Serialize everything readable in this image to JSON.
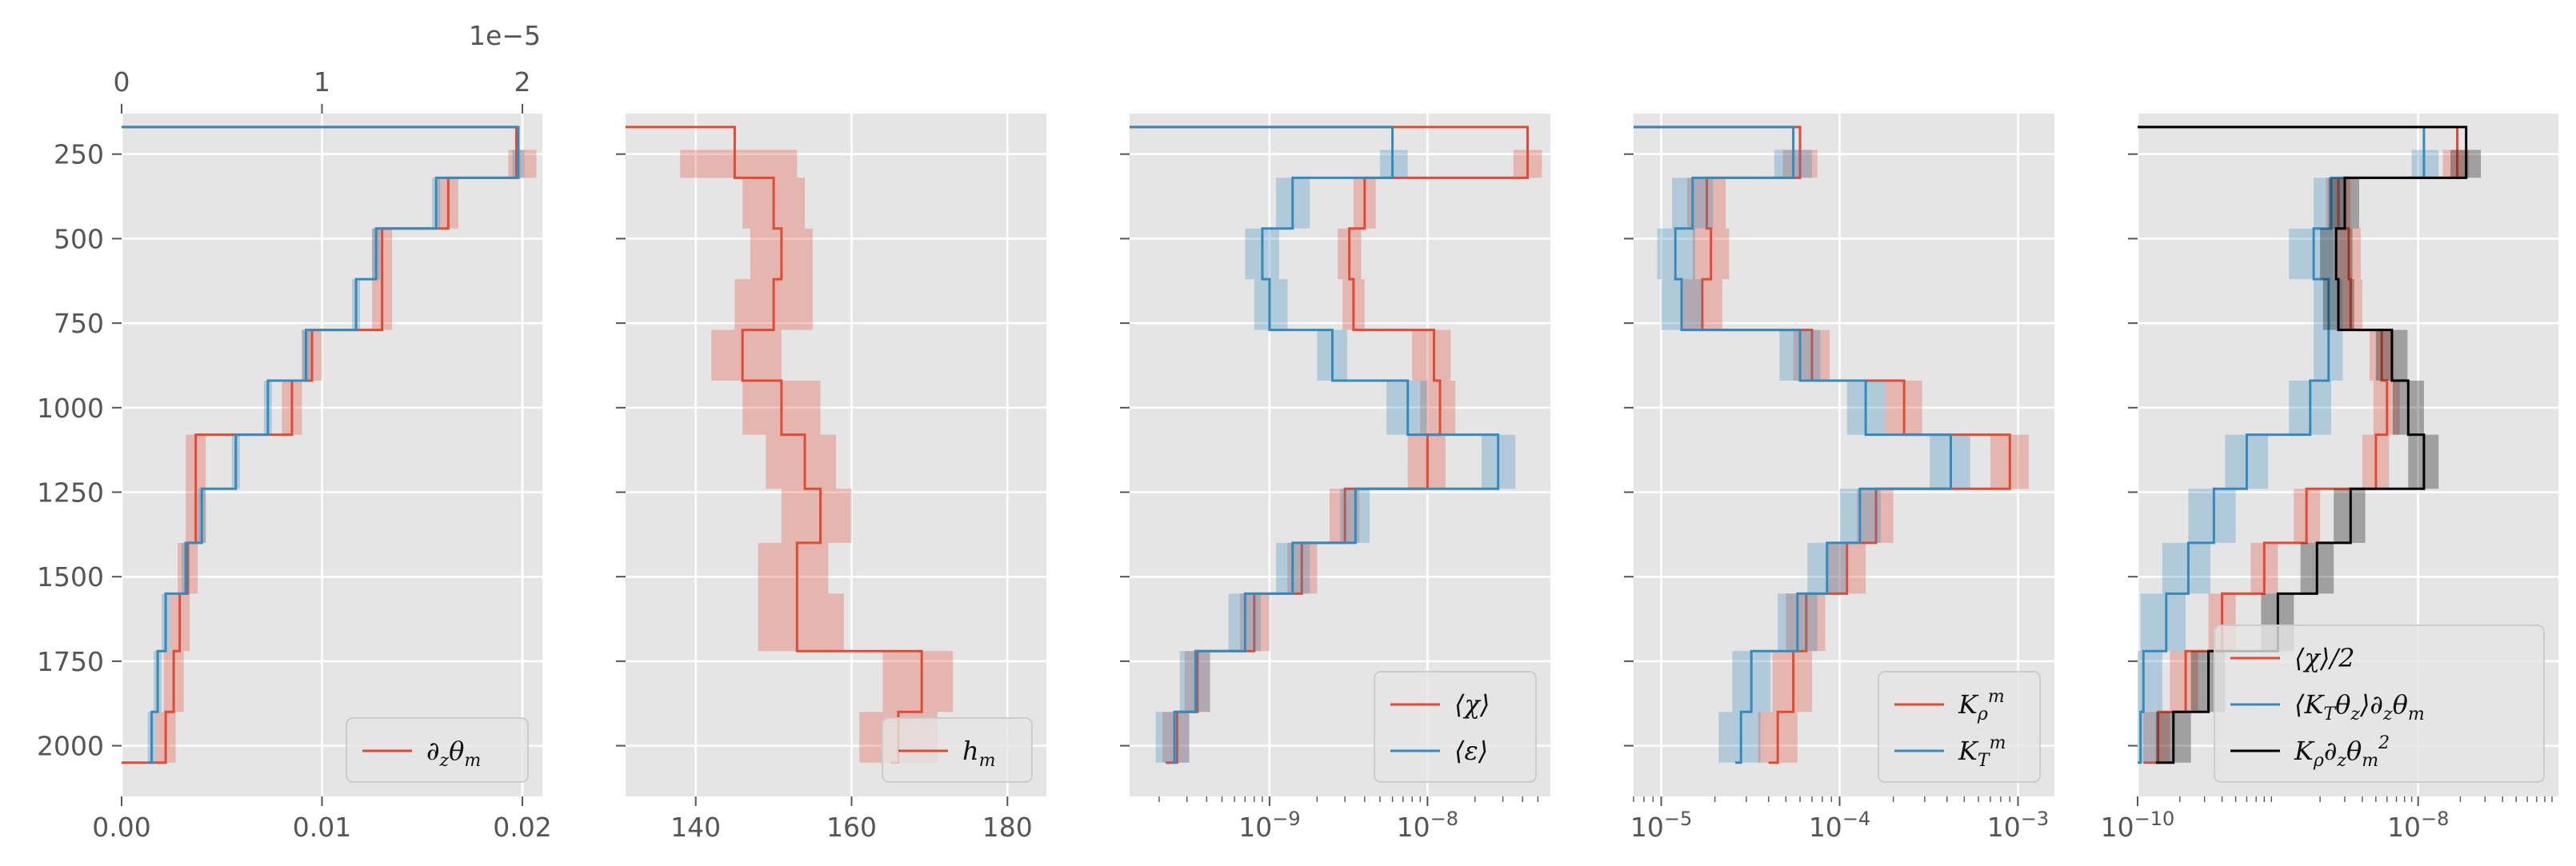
{
  "chart_data": [
    {
      "type": "line",
      "name": "panel-1-buoyancy-gradient",
      "xscale": "linear",
      "xlim": [
        0,
        0.021
      ],
      "xticks": [
        0,
        0.01,
        0.02
      ],
      "xticklabels": [
        "0.00",
        "0.01",
        "0.02"
      ],
      "top_axis": {
        "xlim": [
          0,
          2.1
        ],
        "xticks": [
          0,
          1,
          2
        ],
        "xticklabels": [
          "0",
          "1",
          "2"
        ],
        "offset_text": "1e−5"
      },
      "ylim": [
        2150,
        130
      ],
      "yticks": [
        250,
        500,
        750,
        1000,
        1250,
        1500,
        1750,
        2000
      ],
      "yticklabels": [
        "250",
        "500",
        "750",
        "1000",
        "1250",
        "1500",
        "1750",
        "2000"
      ],
      "grid": true,
      "legend": {
        "position": "lower-right",
        "entries": [
          "∂zθm"
        ]
      },
      "series": [
        {
          "name": "∂zθm",
          "color": "#E24A33",
          "axis": "bottom",
          "edges": [
            170,
            320,
            470,
            770,
            920,
            1080,
            1400,
            1550,
            1720,
            1900,
            2050
          ],
          "values": [
            0.0197,
            0.0163,
            0.013,
            0.0095,
            0.0085,
            0.0037,
            0.0033,
            0.0029,
            0.0026,
            0.0022
          ],
          "band_low": [
            0.0193,
            0.0158,
            0.0125,
            0.009,
            0.008,
            0.0032,
            0.0028,
            0.0024,
            0.0021,
            0.0017
          ],
          "band_high": [
            0.0207,
            0.0168,
            0.0135,
            0.01,
            0.009,
            0.0042,
            0.0038,
            0.0034,
            0.0031,
            0.0027
          ]
        },
        {
          "name": "top-axis-series",
          "color": "#348ABD",
          "axis": "top",
          "edges": [
            170,
            320,
            470,
            620,
            770,
            920,
            1080,
            1240,
            1400,
            1550,
            1720,
            1900,
            2050
          ],
          "values": [
            1.98,
            1.57,
            1.27,
            1.17,
            0.92,
            0.73,
            0.57,
            0.4,
            0.32,
            0.22,
            0.18,
            0.15,
            0.13
          ],
          "band_low": [
            1.95,
            1.55,
            1.25,
            1.15,
            0.9,
            0.71,
            0.55,
            0.38,
            0.3,
            0.2,
            0.16,
            0.13,
            0.11
          ],
          "band_high": [
            2.01,
            1.59,
            1.29,
            1.19,
            0.94,
            0.75,
            0.59,
            0.42,
            0.34,
            0.24,
            0.2,
            0.17,
            0.15
          ]
        }
      ]
    },
    {
      "type": "line",
      "name": "panel-2-hm",
      "xscale": "linear",
      "xlim": [
        131,
        185
      ],
      "xticks": [
        140,
        160,
        180
      ],
      "xticklabels": [
        "140",
        "160",
        "180"
      ],
      "ylim": [
        2150,
        130
      ],
      "yticks": [
        250,
        500,
        750,
        1000,
        1250,
        1500,
        1750,
        2000
      ],
      "grid": true,
      "legend": {
        "position": "lower-right",
        "entries": [
          "hm"
        ]
      },
      "series": [
        {
          "name": "hm",
          "color": "#E24A33",
          "edges": [
            170,
            320,
            470,
            620,
            770,
            920,
            1080,
            1240,
            1400,
            1550,
            1720,
            1900,
            2050
          ],
          "values": [
            145,
            150,
            151,
            150,
            146,
            151,
            154,
            156,
            153,
            153,
            169,
            166,
            165
          ],
          "band_low": [
            138,
            146,
            147,
            145,
            142,
            146,
            149,
            151,
            148,
            148,
            164,
            161,
            160
          ],
          "band_high": [
            153,
            154,
            155,
            155,
            151,
            156,
            158,
            160,
            157,
            159,
            173,
            171,
            170
          ]
        }
      ]
    },
    {
      "type": "line",
      "name": "panel-3-chi-epsilon",
      "xscale": "log",
      "xlim": [
        1.3e-10,
        6e-08
      ],
      "xticks": [
        1e-09,
        1e-08
      ],
      "xticklabels": [
        "10−9",
        "10−8"
      ],
      "ylim": [
        2150,
        130
      ],
      "yticks": [
        250,
        500,
        750,
        1000,
        1250,
        1500,
        1750,
        2000
      ],
      "grid": true,
      "legend": {
        "position": "lower-right",
        "entries": [
          "⟨χ⟩",
          "⟨ε⟩"
        ]
      },
      "series": [
        {
          "name": "⟨χ⟩",
          "color": "#E24A33",
          "edges": [
            170,
            320,
            470,
            620,
            770,
            920,
            1080,
            1240,
            1400,
            1550,
            1720,
            1900,
            2050
          ],
          "values": [
            4.3e-08,
            4e-09,
            3.2e-09,
            3.4e-09,
            1.1e-08,
            1.2e-08,
            1e-08,
            3e-09,
            1.6e-09,
            8e-10,
            3.5e-10,
            2.6e-10,
            2.2e-10
          ],
          "band_low": [
            3.5e-08,
            3.4e-09,
            2.7e-09,
            2.9e-09,
            8e-09,
            9e-09,
            7.5e-09,
            2.4e-09,
            1.3e-09,
            6.5e-10,
            2.9e-10,
            2.1e-10,
            1.7e-10
          ],
          "band_high": [
            5.3e-08,
            4.7e-09,
            3.8e-09,
            4e-09,
            1.4e-08,
            1.5e-08,
            1.3e-08,
            3.7e-09,
            2e-09,
            1e-09,
            4.2e-10,
            3.1e-10,
            2.7e-10
          ]
        },
        {
          "name": "⟨ε⟩",
          "color": "#348ABD",
          "edges": [
            170,
            320,
            470,
            620,
            770,
            920,
            1080,
            1240,
            1400,
            1550,
            1720,
            1900,
            2050
          ],
          "values": [
            6e-09,
            1.4e-09,
            9e-10,
            1e-09,
            2.5e-09,
            7.5e-09,
            2.8e-08,
            3.5e-09,
            1.4e-09,
            7e-10,
            3.4e-10,
            2.5e-10,
            2.4e-10
          ],
          "band_low": [
            5e-09,
            1.1e-09,
            7e-10,
            8e-10,
            2e-09,
            5.5e-09,
            2.2e-08,
            2.8e-09,
            1.1e-09,
            5.5e-10,
            2.7e-10,
            1.9e-10,
            1.9e-10
          ],
          "band_high": [
            7.5e-09,
            1.8e-09,
            1.15e-09,
            1.3e-09,
            3.1e-09,
            1e-08,
            3.6e-08,
            4.3e-09,
            1.8e-09,
            8.8e-10,
            4.2e-10,
            3.1e-10,
            3e-10
          ]
        }
      ]
    },
    {
      "type": "line",
      "name": "panel-4-diffusivity",
      "xscale": "log",
      "xlim": [
        7e-06,
        0.0016
      ],
      "xticks": [
        1e-05,
        0.0001,
        0.001
      ],
      "xticklabels": [
        "10−5",
        "10−4",
        "10−3"
      ],
      "ylim": [
        2150,
        130
      ],
      "yticks": [
        250,
        500,
        750,
        1000,
        1250,
        1500,
        1750,
        2000
      ],
      "grid": true,
      "legend": {
        "position": "lower-right",
        "entries": [
          "Kρm",
          "KTm"
        ]
      },
      "series": [
        {
          "name": "Kρm",
          "color": "#E24A33",
          "edges": [
            170,
            320,
            470,
            620,
            770,
            920,
            1080,
            1240,
            1400,
            1550,
            1720,
            1900,
            2050
          ],
          "values": [
            6e-05,
            1.8e-05,
            1.9e-05,
            1.7e-05,
            7e-05,
            0.00023,
            0.0009,
            0.00016,
            0.00011,
            6.5e-05,
            5.5e-05,
            4.5e-05,
            4e-05
          ],
          "band_low": [
            4.8e-05,
            1.4e-05,
            1.5e-05,
            1.3e-05,
            5.5e-05,
            0.00018,
            0.0007,
            0.000125,
            8.5e-05,
            5e-05,
            4.2e-05,
            3.5e-05,
            3.1e-05
          ],
          "band_high": [
            7.5e-05,
            2.3e-05,
            2.4e-05,
            2.2e-05,
            8.8e-05,
            0.00029,
            0.00115,
            0.0002,
            0.00014,
            8.3e-05,
            7e-05,
            5.8e-05,
            5.1e-05
          ]
        },
        {
          "name": "KTm",
          "color": "#348ABD",
          "edges": [
            170,
            320,
            470,
            620,
            770,
            920,
            1080,
            1240,
            1400,
            1550,
            1720,
            1900,
            2050
          ],
          "values": [
            5.5e-05,
            1.5e-05,
            1.2e-05,
            1.3e-05,
            6e-05,
            0.00014,
            0.00042,
            0.00013,
            8.5e-05,
            5.8e-05,
            3.2e-05,
            2.8e-05,
            2.6e-05
          ],
          "band_low": [
            4.3e-05,
            1.15e-05,
            9.5e-06,
            1e-05,
            4.6e-05,
            0.00011,
            0.00032,
            0.0001,
            6.6e-05,
            4.5e-05,
            2.5e-05,
            2.1e-05,
            2e-05
          ],
          "band_high": [
            7e-05,
            1.95e-05,
            1.55e-05,
            1.7e-05,
            7.8e-05,
            0.00018,
            0.00054,
            0.00017,
            0.00011,
            7.5e-05,
            4.1e-05,
            3.6e-05,
            3.4e-05
          ]
        }
      ]
    },
    {
      "type": "line",
      "name": "panel-5-variance-budget",
      "xscale": "log",
      "xlim": [
        1e-10,
        1e-07
      ],
      "xticks": [
        1e-10,
        1e-08
      ],
      "xticklabels": [
        "10−10",
        "10−8"
      ],
      "ylim": [
        2150,
        130
      ],
      "yticks": [
        250,
        500,
        750,
        1000,
        1250,
        1500,
        1750,
        2000
      ],
      "grid": true,
      "legend": {
        "position": "lower-right",
        "entries": [
          "⟨χ⟩/2",
          "⟨KTθz⟩∂zθm",
          "Kρ∂zθm²"
        ]
      },
      "series": [
        {
          "name": "⟨χ⟩/2",
          "color": "#E24A33",
          "edges": [
            170,
            320,
            470,
            620,
            770,
            920,
            1080,
            1240,
            1400,
            1550,
            1720,
            1900,
            2050
          ],
          "values": [
            1.9e-08,
            2.7e-09,
            3.2e-09,
            3.3e-09,
            5.5e-09,
            6e-09,
            5e-09,
            1.6e-09,
            8e-10,
            4e-10,
            2.2e-10,
            1.4e-10,
            1.1e-10
          ],
          "band_low": [
            1.5e-08,
            2.2e-09,
            2.6e-09,
            2.7e-09,
            4.5e-09,
            4.8e-09,
            4e-09,
            1.3e-09,
            6.4e-10,
            3.2e-10,
            1.7e-10,
            1.1e-10,
            8.5e-11
          ],
          "band_high": [
            2.3e-08,
            3.3e-09,
            3.9e-09,
            4e-09,
            6.7e-09,
            7.4e-09,
            6.2e-09,
            2e-09,
            1e-09,
            5e-10,
            2.7e-10,
            1.7e-10,
            1.4e-10
          ]
        },
        {
          "name": "⟨KTθz⟩∂zθm",
          "color": "#348ABD",
          "edges": [
            170,
            320,
            470,
            620,
            770,
            920,
            1080,
            1240,
            1400,
            1550,
            1720,
            1900,
            2050
          ],
          "values": [
            1.1e-08,
            2.4e-09,
            1.8e-09,
            2.3e-09,
            2.3e-09,
            1.7e-09,
            6e-10,
            3.5e-10,
            2.3e-10,
            1.6e-10,
            1.1e-10,
            1.05e-10,
            1e-10
          ],
          "band_low": [
            9e-09,
            1.8e-09,
            1.2e-09,
            1.8e-09,
            1.8e-09,
            1.2e-09,
            4.2e-10,
            2.3e-10,
            1.5e-10,
            1.05e-10,
            7.5e-11,
            7e-11,
            6.5e-11
          ],
          "band_high": [
            1.4e-08,
            3e-09,
            2.5e-09,
            2.9e-09,
            2.9e-09,
            2.4e-09,
            8.5e-10,
            5e-10,
            3.3e-10,
            2.2e-10,
            1.5e-10,
            1.4e-10,
            1.35e-10
          ]
        },
        {
          "name": "Kρ∂zθm²",
          "color": "#000000",
          "edges": [
            170,
            320,
            470,
            620,
            770,
            920,
            1080,
            1240,
            1400,
            1550,
            1720,
            1900,
            2050
          ],
          "values": [
            2.2e-08,
            3e-09,
            2.6e-09,
            2.7e-09,
            6.5e-09,
            8.5e-09,
            1.1e-08,
            3.3e-09,
            1.9e-09,
            1e-09,
            3.2e-10,
            1.8e-10,
            1.35e-10
          ],
          "band_low": [
            1.7e-08,
            2.3e-09,
            2e-09,
            2.1e-09,
            5e-09,
            6.6e-09,
            8.5e-09,
            2.5e-09,
            1.45e-09,
            7.6e-10,
            2.4e-10,
            1.35e-10,
            1e-10
          ],
          "band_high": [
            2.8e-08,
            3.8e-09,
            3.4e-09,
            3.5e-09,
            8.4e-09,
            1.1e-08,
            1.4e-08,
            4.2e-09,
            2.5e-09,
            1.3e-09,
            4.2e-10,
            2.4e-10,
            1.8e-10
          ]
        }
      ]
    }
  ],
  "colors": {
    "red": "#E24A33",
    "blue": "#348ABD",
    "black": "#000000",
    "panel_bg": "#E5E5E5"
  }
}
